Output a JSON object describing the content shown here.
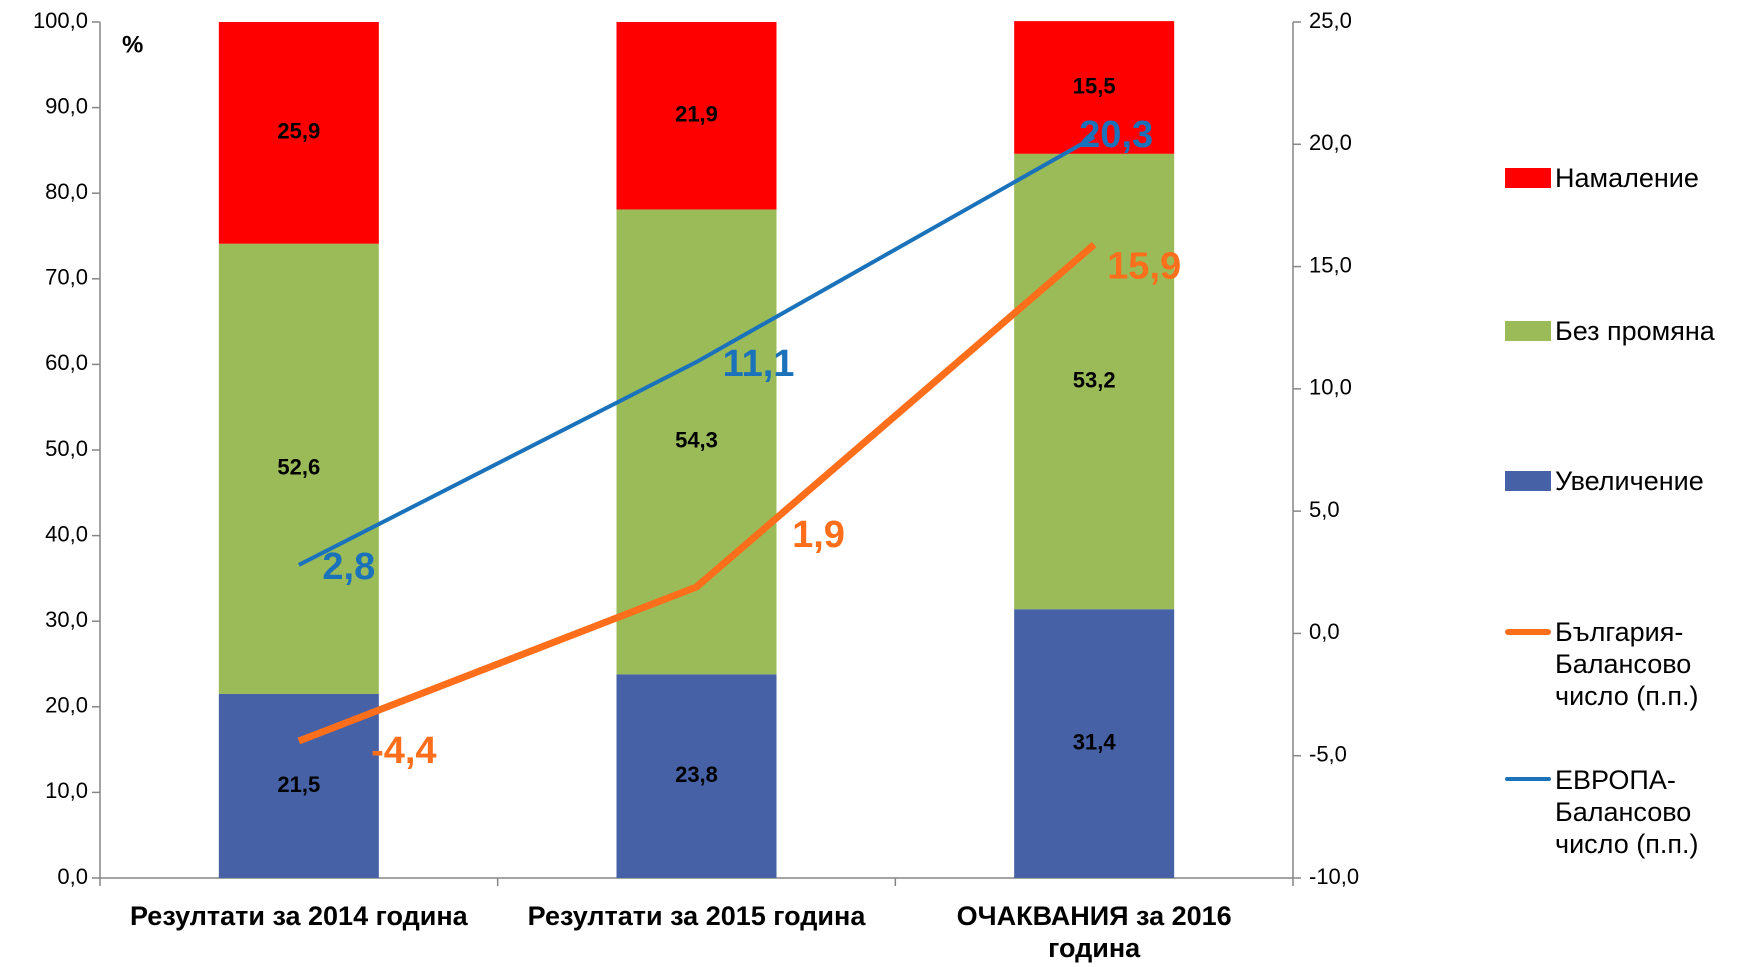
{
  "chart_data": {
    "type": "bar",
    "stacked": true,
    "y_label": "%",
    "categories": [
      "Резултати за 2014 година",
      "Резултати за 2015 година",
      "ОЧАКВАНИЯ за 2016 година"
    ],
    "series": [
      {
        "name": "Увеличение",
        "color": "#4661a5",
        "values": [
          21.5,
          23.8,
          31.4
        ],
        "value_labels": [
          "21,5",
          "23,8",
          "31,4"
        ]
      },
      {
        "name": "Без промяна",
        "color": "#9bbb59",
        "values": [
          52.6,
          54.3,
          53.2
        ],
        "value_labels": [
          "52,6",
          "54,3",
          "53,2"
        ]
      },
      {
        "name": "Намаление",
        "color": "#ff0000",
        "values": [
          25.9,
          21.9,
          15.5
        ],
        "value_labels": [
          "25,9",
          "21,9",
          "15,5"
        ]
      },
      {
        "name": "България-Балансово число (п.п.)",
        "type": "line",
        "axis": "y2",
        "color": "#ff6e1a",
        "values": [
          -4.4,
          1.9,
          15.9
        ],
        "value_labels": [
          "-4,4",
          "1,9",
          "15,9"
        ]
      },
      {
        "name": "ЕВРОПА-Балансово число (п.п.)",
        "type": "line",
        "axis": "y2",
        "color": "#1a72bb",
        "values": [
          2.8,
          11.1,
          20.3
        ],
        "value_labels": [
          "2,8",
          "11,1",
          "20,3"
        ]
      }
    ],
    "ylim": [
      0,
      100
    ],
    "yticks": [
      {
        "value": 0,
        "label": "0,0"
      },
      {
        "value": 10,
        "label": "10,0"
      },
      {
        "value": 20,
        "label": "20,0"
      },
      {
        "value": 30,
        "label": "30,0"
      },
      {
        "value": 40,
        "label": "40,0"
      },
      {
        "value": 50,
        "label": "50,0"
      },
      {
        "value": 60,
        "label": "60,0"
      },
      {
        "value": 70,
        "label": "70,0"
      },
      {
        "value": 80,
        "label": "80,0"
      },
      {
        "value": 90,
        "label": "90,0"
      },
      {
        "value": 100,
        "label": "100,0"
      }
    ],
    "y2lim": [
      -10,
      25
    ],
    "y2ticks": [
      {
        "value": -10,
        "label": "-10,0"
      },
      {
        "value": -5,
        "label": "-5,0"
      },
      {
        "value": 0,
        "label": "0,0"
      },
      {
        "value": 5,
        "label": "5,0"
      },
      {
        "value": 10,
        "label": "10,0"
      },
      {
        "value": 15,
        "label": "15,0"
      },
      {
        "value": 20,
        "label": "20,0"
      },
      {
        "value": 25,
        "label": "25,0"
      }
    ],
    "legend": "right",
    "grid": false
  }
}
